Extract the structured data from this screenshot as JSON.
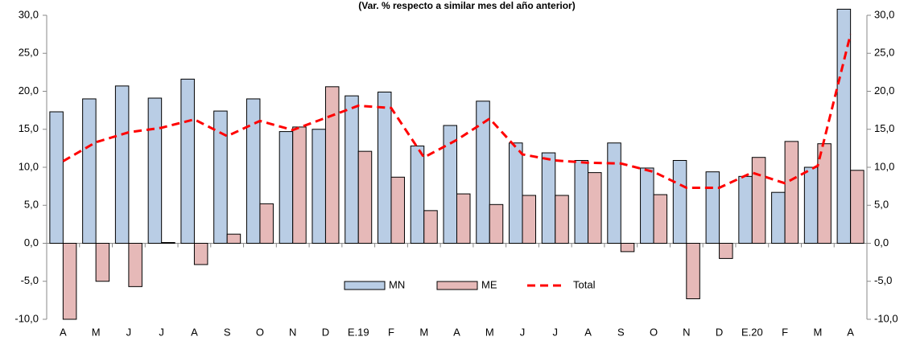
{
  "chart_data": {
    "type": "bar",
    "title": "(Var. % respecto a similar mes del año anterior)",
    "categories": [
      "A",
      "M",
      "J",
      "J",
      "A",
      "S",
      "O",
      "N",
      "D",
      "E.19",
      "F",
      "M",
      "A",
      "M",
      "J",
      "J",
      "A",
      "S",
      "O",
      "N",
      "D",
      "E.20",
      "F",
      "M",
      "A"
    ],
    "series": [
      {
        "name": "MN",
        "type": "bar",
        "color": "#b9cde5",
        "values": [
          17.3,
          19.0,
          20.7,
          19.1,
          21.6,
          17.4,
          19.0,
          14.7,
          15.0,
          19.4,
          19.9,
          12.8,
          15.5,
          18.7,
          13.2,
          11.9,
          10.9,
          13.2,
          9.9,
          10.9,
          9.4,
          8.8,
          6.7,
          10.0,
          30.8
        ]
      },
      {
        "name": "ME",
        "type": "bar",
        "color": "#e6b9b8",
        "values": [
          -10.0,
          -5.0,
          -5.7,
          0.1,
          -2.8,
          1.2,
          5.2,
          15.3,
          20.6,
          12.1,
          8.7,
          4.3,
          6.5,
          5.1,
          6.3,
          6.3,
          9.3,
          -1.1,
          6.4,
          -7.3,
          -2.0,
          11.3,
          13.4,
          13.1,
          9.6
        ]
      },
      {
        "name": "Total",
        "type": "line",
        "color": "#ff0000",
        "values": [
          10.8,
          13.3,
          14.6,
          15.2,
          16.3,
          14.1,
          16.1,
          14.9,
          16.5,
          18.1,
          17.8,
          11.3,
          13.6,
          16.4,
          11.7,
          10.9,
          10.6,
          10.5,
          9.4,
          7.3,
          7.3,
          9.3,
          7.9,
          10.2,
          27.5
        ]
      }
    ],
    "ylim": [
      -10,
      30
    ],
    "yticks": [
      {
        "value": -10,
        "label": "-10,0"
      },
      {
        "value": -5,
        "label": "-5,0"
      },
      {
        "value": 0,
        "label": "0,0"
      },
      {
        "value": 5,
        "label": "5,0"
      },
      {
        "value": 10,
        "label": "10,0"
      },
      {
        "value": 15,
        "label": "15,0"
      },
      {
        "value": 20,
        "label": "20,0"
      },
      {
        "value": 25,
        "label": "25,0"
      },
      {
        "value": 30,
        "label": "30,0"
      }
    ],
    "y2lim": [
      -10,
      30
    ],
    "y2ticks": [
      {
        "value": -10,
        "label": "-10,0"
      },
      {
        "value": -5,
        "label": "-5,0"
      },
      {
        "value": 0,
        "label": "0,0"
      },
      {
        "value": 5,
        "label": "5,0"
      },
      {
        "value": 10,
        "label": "10,0"
      },
      {
        "value": 15,
        "label": "15,0"
      },
      {
        "value": 20,
        "label": "20,0"
      },
      {
        "value": 25,
        "label": "25,0"
      },
      {
        "value": 30,
        "label": "30,0"
      }
    ]
  }
}
